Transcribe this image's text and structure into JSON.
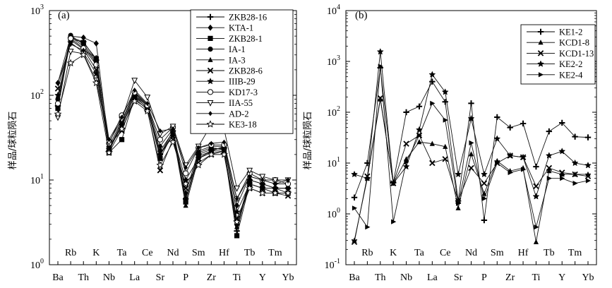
{
  "chart_data": [
    {
      "type": "line",
      "panel_label": "(a)",
      "ylabel": "样品/球粒陨石",
      "yscale": "log",
      "ylim": [
        1,
        1000
      ],
      "yticks": [
        {
          "value": 1,
          "base": "10",
          "exp": "0"
        },
        {
          "value": 10,
          "base": "10",
          "exp": "1"
        },
        {
          "value": 100,
          "base": "10",
          "exp": "2"
        },
        {
          "value": 1000,
          "base": "10",
          "exp": "3"
        }
      ],
      "categories": [
        "Ba",
        "Rb",
        "Th",
        "K",
        "Nb",
        "Ta",
        "La",
        "Ce",
        "Sr",
        "Nd",
        "P",
        "Sm",
        "Zr",
        "Hf",
        "Ti",
        "Tb",
        "Y",
        "Tm",
        "Yb"
      ],
      "legend_position": "top-right",
      "series": [
        {
          "name": "ZKB28-16",
          "marker": "plus",
          "values": [
            75,
            480,
            430,
            260,
            22,
            45,
            100,
            75,
            20,
            38,
            6,
            20,
            23,
            24,
            2.5,
            10,
            9,
            8,
            8
          ]
        },
        {
          "name": "KTA-1",
          "marker": "diamond",
          "values": [
            140,
            500,
            480,
            410,
            25,
            50,
            110,
            78,
            25,
            40,
            7,
            22,
            25,
            25,
            5,
            11,
            10,
            9,
            9
          ]
        },
        {
          "name": "ZKB28-1",
          "marker": "square",
          "values": [
            70,
            470,
            420,
            270,
            21,
            30,
            95,
            72,
            18,
            36,
            5.5,
            19,
            22,
            23,
            2.2,
            9,
            8,
            7,
            7
          ]
        },
        {
          "name": "IA-1",
          "marker": "circle",
          "values": [
            90,
            510,
            400,
            250,
            23,
            48,
            105,
            74,
            22,
            37,
            6,
            21,
            24,
            23,
            3,
            10,
            9,
            8,
            8
          ]
        },
        {
          "name": "IA-3",
          "marker": "triangle",
          "values": [
            80,
            490,
            380,
            240,
            24,
            42,
            100,
            70,
            20,
            35,
            5,
            18,
            21,
            22,
            2.8,
            9,
            8,
            7,
            7
          ]
        },
        {
          "name": "ZKB28-6",
          "marker": "x",
          "values": [
            120,
            450,
            350,
            200,
            26,
            38,
            92,
            68,
            13,
            30,
            8,
            16,
            20,
            22,
            3.5,
            8,
            7,
            7,
            6.5
          ]
        },
        {
          "name": "IIIB-29",
          "marker": "star",
          "values": [
            100,
            420,
            320,
            180,
            23,
            45,
            88,
            70,
            20,
            33,
            10,
            18,
            22,
            25,
            4.2,
            9,
            8,
            8,
            7
          ]
        },
        {
          "name": "KD17-3",
          "marker": "circle-open",
          "values": [
            80,
            470,
            360,
            230,
            27,
            58,
            108,
            76,
            30,
            42,
            12,
            24,
            26,
            26,
            6,
            12,
            10,
            10,
            9
          ]
        },
        {
          "name": "IIA-55",
          "marker": "triangle-down-open",
          "values": [
            55,
            330,
            310,
            150,
            28,
            52,
            150,
            95,
            35,
            43,
            15,
            25,
            45,
            40,
            8,
            13,
            11,
            10,
            10
          ]
        },
        {
          "name": "AD-2",
          "marker": "diamond-small",
          "values": [
            140,
            400,
            340,
            280,
            30,
            55,
            115,
            80,
            38,
            40,
            14,
            24,
            27,
            28,
            6,
            11,
            10,
            9,
            10
          ]
        },
        {
          "name": "KE3-18",
          "marker": "star-open",
          "values": [
            60,
            240,
            300,
            140,
            21,
            40,
            85,
            65,
            15,
            28,
            9,
            15,
            20,
            20,
            3.2,
            8,
            7,
            7,
            7
          ]
        }
      ]
    },
    {
      "type": "line",
      "panel_label": "(b)",
      "ylabel": "样品/球粒陨石",
      "yscale": "log",
      "ylim": [
        0.1,
        10000
      ],
      "yticks": [
        {
          "value": 0.1,
          "base": "10",
          "exp": "-1"
        },
        {
          "value": 1,
          "base": "10",
          "exp": "0"
        },
        {
          "value": 10,
          "base": "10",
          "exp": "1"
        },
        {
          "value": 100,
          "base": "10",
          "exp": "2"
        },
        {
          "value": 1000,
          "base": "10",
          "exp": "3"
        },
        {
          "value": 10000,
          "base": "10",
          "exp": "4"
        }
      ],
      "categories": [
        "Ba",
        "Rb",
        "Th",
        "K",
        "Nb",
        "Ta",
        "La",
        "Ce",
        "Sr",
        "Nd",
        "P",
        "Sm",
        "Zr",
        "Hf",
        "Ti",
        "Tb",
        "Y",
        "Tm",
        "Yb"
      ],
      "legend_position": "top-right",
      "series": [
        {
          "name": "KE1-2",
          "marker": "plus",
          "values": [
            2.1,
            10,
            750,
            4.1,
            100,
            130,
            400,
            160,
            1.8,
            150,
            0.75,
            80,
            50,
            60,
            8.5,
            42,
            62,
            33,
            32
          ]
        },
        {
          "name": "KCD1-8",
          "marker": "triangle",
          "values": [
            0.3,
            5,
            180,
            4,
            12,
            26,
            24,
            21,
            1.3,
            15,
            2.5,
            11,
            7,
            8,
            0.28,
            7,
            6,
            6,
            6
          ]
        },
        {
          "name": "KCD1-13",
          "marker": "x",
          "values": [
            0.28,
            5.5,
            190,
            4,
            24,
            35,
            10,
            12,
            1.8,
            8,
            4,
            10,
            14,
            13,
            3.5,
            8,
            6.5,
            6,
            5.5
          ]
        },
        {
          "name": "KE2-2",
          "marker": "star",
          "values": [
            6,
            5,
            1550,
            4,
            8.5,
            45,
            550,
            250,
            6,
            75,
            6,
            30,
            14,
            13,
            2.2,
            14,
            17,
            10,
            9
          ]
        },
        {
          "name": "KE2-4",
          "marker": "triangle-right",
          "values": [
            1.3,
            0.55,
            800,
            0.7,
            10.5,
            35,
            150,
            70,
            1.6,
            25,
            2,
            10,
            6.5,
            7.5,
            0.55,
            5,
            5,
            4,
            4.5
          ]
        }
      ]
    }
  ]
}
